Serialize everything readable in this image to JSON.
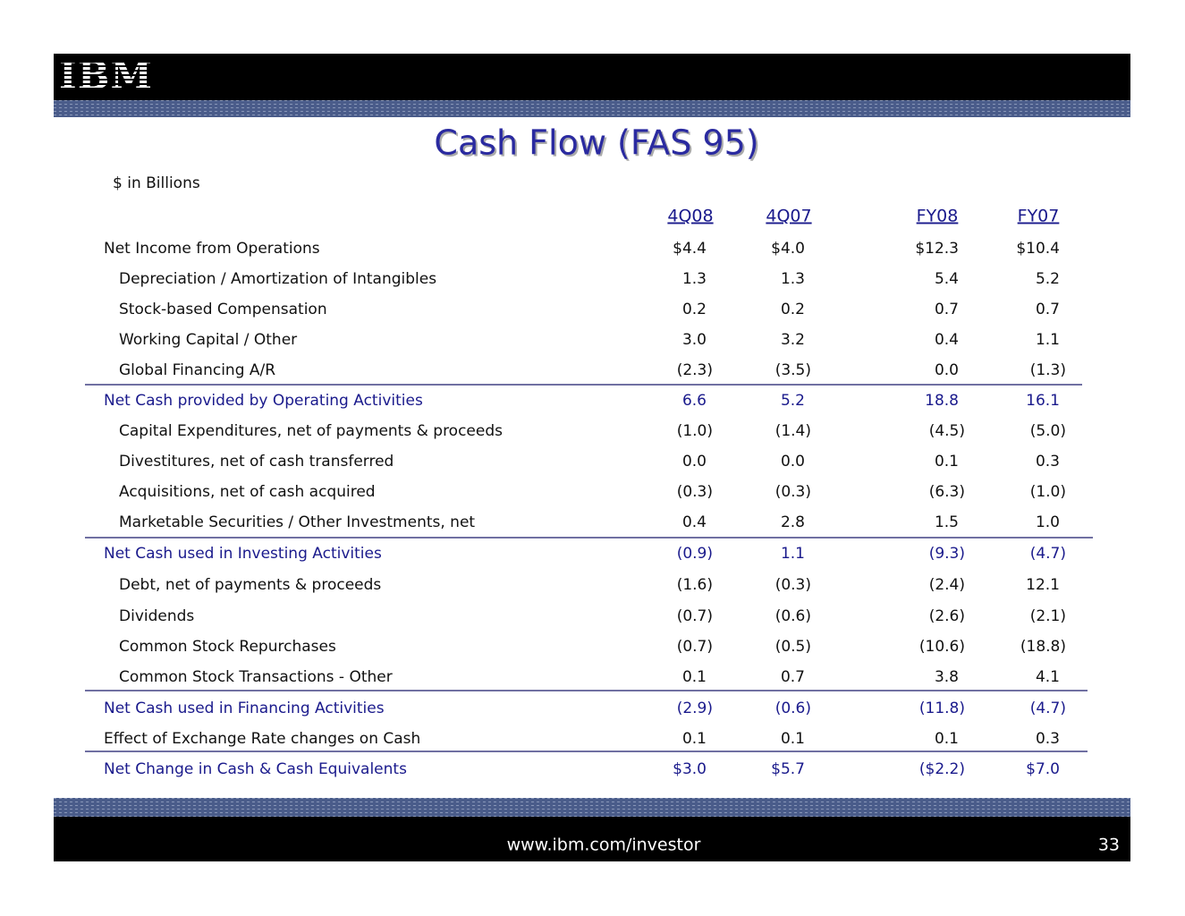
{
  "header": {
    "logo": "IBM",
    "title": "Cash Flow (FAS 95)",
    "subtitle": "$ in Billions"
  },
  "table": {
    "columns": [
      "4Q08",
      "4Q07",
      "FY08",
      "FY07"
    ],
    "rows": [
      {
        "label": "Net Income from Operations",
        "values": [
          "$4.4",
          "$4.0",
          "$12.3",
          "$10.4"
        ]
      },
      {
        "label": "Depreciation / Amortization of Intangibles",
        "values": [
          "1.3",
          "1.3",
          "5.4",
          "5.2"
        ]
      },
      {
        "label": "Stock-based Compensation",
        "values": [
          "0.2",
          "0.2",
          "0.7",
          "0.7"
        ]
      },
      {
        "label": "Working Capital / Other",
        "values": [
          "3.0",
          "3.2",
          "0.4",
          "1.1"
        ]
      },
      {
        "label": "Global Financing  A/R",
        "values": [
          "(2.3)",
          "(3.5)",
          "0.0",
          "(1.3)"
        ]
      },
      {
        "label": "Net Cash provided by Operating Activities",
        "values": [
          "6.6",
          "5.2",
          "18.8",
          "16.1"
        ]
      },
      {
        "label": "Capital Expenditures, net of payments & proceeds",
        "values": [
          "(1.0)",
          "(1.4)",
          "(4.5)",
          "(5.0)"
        ]
      },
      {
        "label": "Divestitures, net of cash transferred",
        "values": [
          "0.0",
          "0.0",
          "0.1",
          "0.3"
        ]
      },
      {
        "label": "Acquisitions, net of cash acquired",
        "values": [
          "(0.3)",
          "(0.3)",
          "(6.3)",
          "(1.0)"
        ]
      },
      {
        "label": "Marketable Securities / Other Investments, net",
        "values": [
          "0.4",
          "2.8",
          "1.5",
          "1.0"
        ]
      },
      {
        "label": "Net Cash used in Investing Activities",
        "values": [
          "(0.9)",
          "1.1",
          "(9.3)",
          "(4.7)"
        ]
      },
      {
        "label": "Debt, net of payments & proceeds",
        "values": [
          "(1.6)",
          "(0.3)",
          "(2.4)",
          "12.1"
        ]
      },
      {
        "label": "Dividends",
        "values": [
          "(0.7)",
          "(0.6)",
          "(2.6)",
          "(2.1)"
        ]
      },
      {
        "label": "Common Stock Repurchases",
        "values": [
          "(0.7)",
          "(0.5)",
          "(10.6)",
          "(18.8)"
        ]
      },
      {
        "label": "Common Stock Transactions - Other",
        "values": [
          "0.1",
          "0.7",
          "3.8",
          "4.1"
        ]
      },
      {
        "label": "Net Cash used in Financing Activities",
        "values": [
          "(2.9)",
          "(0.6)",
          "(11.8)",
          "(4.7)"
        ]
      },
      {
        "label": "Effect of Exchange Rate changes on Cash",
        "values": [
          "0.1",
          "0.1",
          "0.1",
          "0.3"
        ]
      },
      {
        "label": "Net Change in Cash & Cash Equivalents",
        "values": [
          "$3.0",
          "$5.7",
          "($2.2)",
          "$7.0"
        ]
      }
    ]
  },
  "footer": {
    "url": "www.ibm.com/investor",
    "page": "33"
  }
}
